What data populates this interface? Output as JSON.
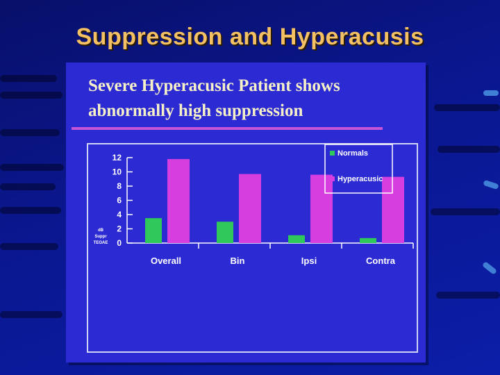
{
  "slide": {
    "title": "Suppression and Hyperacusis",
    "heading_line_1": "Severe Hyperacusic Patient shows",
    "heading_line_2": "abnormally high suppression"
  },
  "colors": {
    "background": "#0a1790",
    "title": "#f3c064",
    "panel": "#2c2ad2",
    "normals": "#2fc85a",
    "hyperacusic": "#d73ee0",
    "axis": "#ffffff"
  },
  "chart_data": {
    "type": "bar",
    "categories": [
      "Overall",
      "Bin",
      "Ipsi",
      "Contra"
    ],
    "series": [
      {
        "name": "Normals",
        "values": [
          3.5,
          3.0,
          1.1,
          0.7
        ]
      },
      {
        "name": "Hyperacusic",
        "values": [
          11.8,
          9.7,
          9.6,
          9.3
        ]
      }
    ],
    "ylabel": "dB Suppr TEOAE",
    "ylim": [
      0,
      12
    ],
    "yticks": [
      0,
      2,
      4,
      6,
      8,
      10,
      12
    ],
    "legend_position": "top-right",
    "grid": false
  }
}
